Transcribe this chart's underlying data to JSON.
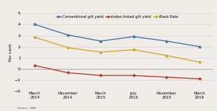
{
  "x_labels": [
    "March\n2014",
    "December\n2014",
    "March\n2015",
    "July\n2015",
    "November\n2015",
    "March\n2016"
  ],
  "conventional_gilt": [
    4.0,
    3.05,
    2.5,
    2.9,
    2.5,
    2.0
  ],
  "index_linked_gilt": [
    0.3,
    -0.35,
    -0.6,
    -0.6,
    -0.75,
    -0.9
  ],
  "bank_rate": [
    2.85,
    1.9,
    1.5,
    1.72,
    1.2,
    0.6
  ],
  "conventional_color": "#4472a8",
  "index_linked_color": "#c0392b",
  "bank_rate_color": "#d4a820",
  "ylim": [
    -2,
    5
  ],
  "yticks": [
    -2,
    -1,
    0,
    1,
    2,
    3,
    4,
    5
  ],
  "ylabel": "Per cent",
  "source": "Source: OBR",
  "legend_labels": [
    "Conventional gilt yield",
    "Index-linked gilt yield",
    "Bank Rate"
  ],
  "background_color": "#f0ede8",
  "grid_color": "#cccccc",
  "zero_line_color": "#aaaaaa"
}
